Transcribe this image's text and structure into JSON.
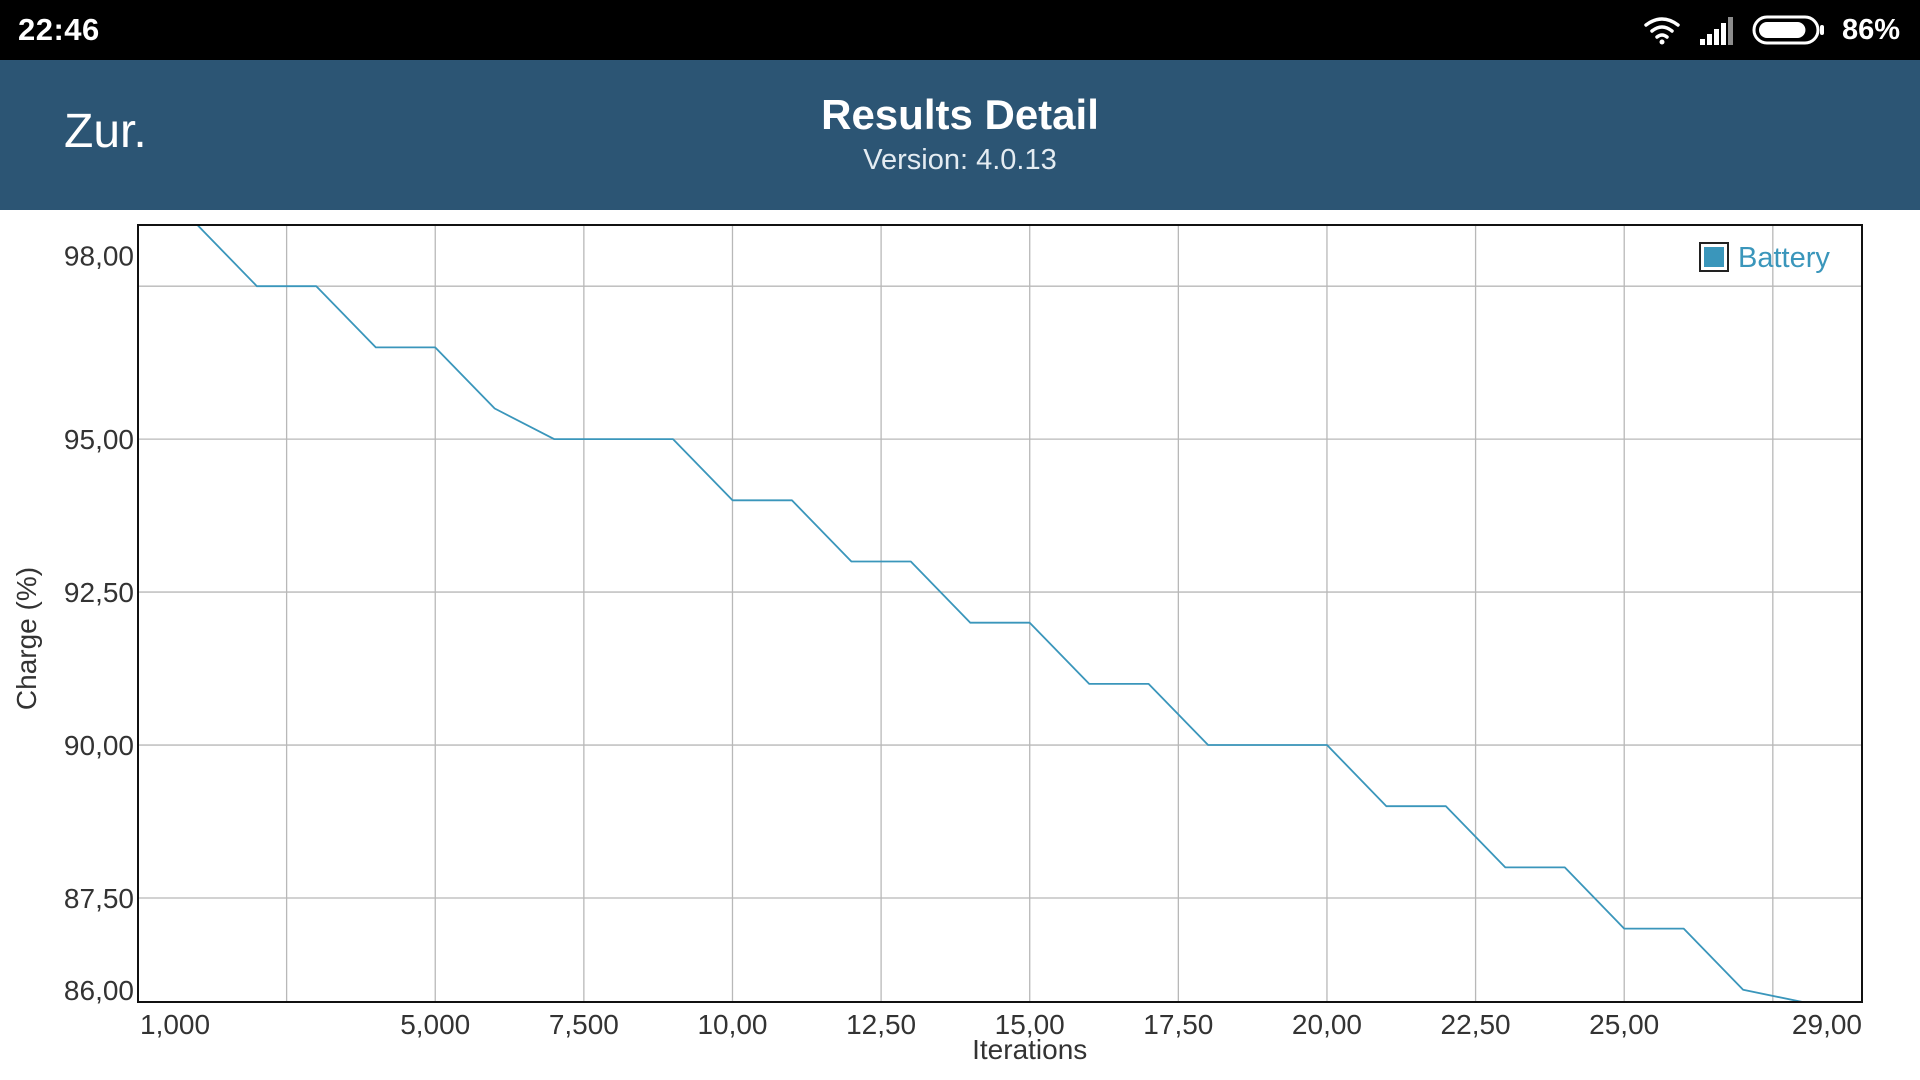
{
  "status_bar": {
    "time": "22:46",
    "battery_percent_label": "86%",
    "battery_level": 0.86,
    "icons": [
      "wifi-icon",
      "signal-icon",
      "battery-icon"
    ]
  },
  "app_bar": {
    "back_label": "Zur.",
    "title": "Results Detail",
    "subtitle": "Version: 4.0.13",
    "background_color": "#2c5574"
  },
  "chart_data": {
    "type": "line",
    "xlabel": "Iterations",
    "ylabel": "Charge (%)",
    "xlim": [
      0,
      29000
    ],
    "ylim": [
      85.8,
      98.5
    ],
    "x_ticks": [
      {
        "value": 1000,
        "label": "1,000"
      },
      {
        "value": 5000,
        "label": "5,000"
      },
      {
        "value": 7500,
        "label": "7,500"
      },
      {
        "value": 10000,
        "label": "10,00"
      },
      {
        "value": 12500,
        "label": "12,50"
      },
      {
        "value": 15000,
        "label": "15,00"
      },
      {
        "value": 17500,
        "label": "17,50"
      },
      {
        "value": 20000,
        "label": "20,00"
      },
      {
        "value": 22500,
        "label": "22,50"
      },
      {
        "value": 25000,
        "label": "25,00"
      },
      {
        "value": 29000,
        "label": "29,00"
      }
    ],
    "x_gridlines": [
      2500,
      5000,
      7500,
      10000,
      12500,
      15000,
      17500,
      20000,
      22500,
      25000,
      27500
    ],
    "y_ticks": [
      {
        "value": 98.0,
        "label": "98,00"
      },
      {
        "value": 95.0,
        "label": "95,00"
      },
      {
        "value": 92.5,
        "label": "92,50"
      },
      {
        "value": 90.0,
        "label": "90,00"
      },
      {
        "value": 87.5,
        "label": "87,50"
      },
      {
        "value": 86.0,
        "label": "86,00"
      }
    ],
    "y_gridlines": [
      97.5,
      95.0,
      92.5,
      90.0,
      87.5
    ],
    "grid": true,
    "legend_position": "top-right",
    "series": [
      {
        "name": "Battery",
        "color": "#3a96bb",
        "x": [
          0,
          1000,
          2000,
          3000,
          4000,
          5000,
          6000,
          7000,
          8000,
          9000,
          10000,
          11000,
          12000,
          13000,
          14000,
          15000,
          16000,
          17000,
          18000,
          19000,
          20000,
          21000,
          22000,
          23000,
          24000,
          25000,
          26000,
          27000,
          28000,
          29000
        ],
        "y": [
          98.5,
          98.5,
          97.5,
          97.5,
          96.5,
          96.5,
          95.5,
          95.0,
          95.0,
          95.0,
          94.0,
          94.0,
          93.0,
          93.0,
          92.0,
          92.0,
          91.0,
          91.0,
          90.0,
          90.0,
          90.0,
          89.0,
          89.0,
          88.0,
          88.0,
          87.0,
          87.0,
          86.0,
          85.8,
          85.8
        ]
      }
    ]
  }
}
